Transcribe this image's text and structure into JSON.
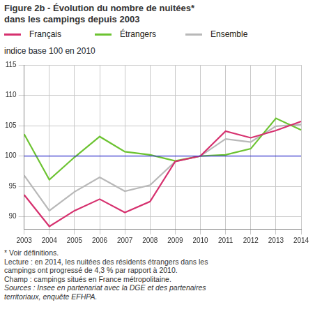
{
  "chart_data": {
    "type": "line",
    "title": "Figure 2b - Évolution du nombre de nuitées* dans les campings depuis 2003",
    "subtitle": "indice base 100 en 2010",
    "categories": [
      "2003",
      "2004",
      "2005",
      "2006",
      "2007",
      "2008",
      "2009",
      "2010",
      "2011",
      "2012",
      "2013",
      "2014"
    ],
    "series": [
      {
        "name": "Français",
        "color": "#d6306e",
        "values": [
          93.6,
          88.4,
          91.0,
          92.9,
          90.7,
          92.5,
          99.1,
          100,
          104.1,
          103.0,
          104.2,
          105.7
        ]
      },
      {
        "name": "Étrangers",
        "color": "#6cc331",
        "values": [
          103.6,
          96.1,
          99.8,
          103.2,
          100.7,
          100.2,
          99.2,
          100,
          100.2,
          101.2,
          106.2,
          104.3
        ]
      },
      {
        "name": "Ensemble",
        "color": "#b8b8b8",
        "values": [
          96.8,
          91.0,
          94.1,
          96.5,
          94.2,
          95.2,
          99.1,
          100,
          102.8,
          102.3,
          104.9,
          105.2
        ]
      }
    ],
    "reference_line": {
      "value": 100,
      "color": "#3333cc"
    },
    "ylim": [
      88,
      115
    ],
    "yticks": [
      90,
      95,
      100,
      105,
      110,
      115
    ],
    "grid": true,
    "notes": [
      "* Voir définitions.",
      "Lecture : en 2014, les nuitées des résidents étrangers dans les campings ont progressé de 4,3 % par rapport à 2010.",
      "Champ : campings situés en France métropolitaine.",
      "Sources : Insee en partenariat avec la DGE et des partenaires territoriaux, enquête EFHPA."
    ]
  }
}
